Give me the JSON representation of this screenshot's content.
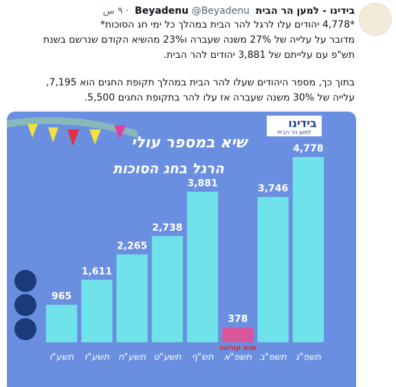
{
  "tweet": {
    "author": "בידינו - למען הר הבית Beyadenu",
    "handle": "@Beyadenu",
    "time": "· ٩ س",
    "lines": [
      "*4,778 יהודים עלו לרגל להר הבית במהלך כל ימי חג הסוכות*",
      "מדובר על עלייה של 27% משנה שעברה ו23% מהשיא הקודם שנרשם בשנת",
      "תש\"פ עם עלייתם של 3,881 יהודים להר הבית.",
      "בתוך כך, מספר היהודים שעלו להר הבית במהלך תקופת החגים הוא 7,195,",
      "עלייה של 30% משנה שעברה אז עלו להר בתקופת החגים 5,500."
    ]
  },
  "logo": {
    "name": "בידינו",
    "tagline": "למען הר הבית"
  },
  "chart_data": {
    "type": "bar",
    "title": "שיא במספר עולי",
    "subtitle": "הרגל בחג הסוכות",
    "categories": [
      "תשע\"ו",
      "תשע\"ז",
      "תשע\"ח",
      "תשע\"ט",
      "תש\"ף",
      "תשפ\"א",
      "תשפ\"ב",
      "תשפ\"ג"
    ],
    "values": [
      965,
      1611,
      2265,
      2738,
      3881,
      378,
      3746,
      4778
    ],
    "value_labels": [
      "965",
      "1,611",
      "2,265",
      "2,738",
      "3,881",
      "378",
      "3,746",
      "4,778"
    ],
    "colors": [
      "#70e3ea",
      "#70e3ea",
      "#70e3ea",
      "#70e3ea",
      "#70e3ea",
      "#d9559a",
      "#70e3ea",
      "#70e3ea"
    ],
    "annotations": [
      "שנת קורונה"
    ]
  }
}
